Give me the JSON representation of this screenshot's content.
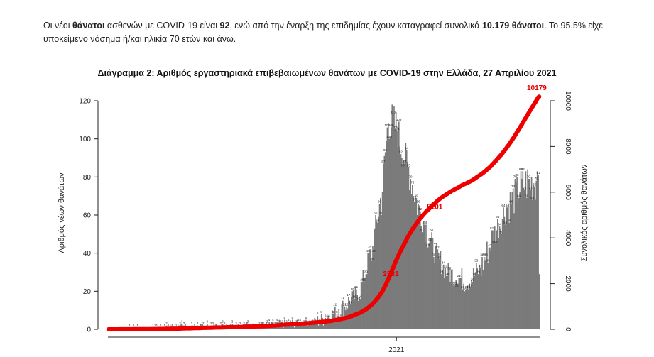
{
  "intro": {
    "p1": "Οι νέοι ",
    "b1": "θάνατοι",
    "p2": " ασθενών με COVID-19 είναι ",
    "b2": "92",
    "p3": ", ενώ από την έναρξη της επιδημίας έχουν καταγραφεί συνολικά ",
    "b3": "10.179 θάνατοι",
    "p4": ".  Το 95.5% είχε υποκείμενο νόσημα ή/και ηλικία 70 ετών και άνω."
  },
  "chart_data": {
    "type": "bar",
    "title": "Διάγραμμα 2: Αριθμός εργαστηριακά επιβεβαιωμένων θανάτων με COVID-19 στην Ελλάδα, 27 Απριλίου 2021",
    "ylabel": "Αριθμός νέων θανάτων",
    "y2label": "Συνολικός αριθμός θανάτων",
    "ylim": [
      0,
      120
    ],
    "y2lim": [
      0,
      10000
    ],
    "yticks": [
      "0",
      "20",
      "40",
      "60",
      "80",
      "100",
      "120"
    ],
    "y2ticks": [
      "0",
      "2000",
      "4000",
      "6000",
      "8000",
      "10000"
    ],
    "x_tick_labels": [
      "2021"
    ],
    "curve_annotations": [
      "2531",
      "5101",
      "10179"
    ],
    "segments": [
      {
        "days": 75,
        "start": 0,
        "end": 1,
        "amp": 1
      },
      {
        "days": 85,
        "start": 1,
        "end": 2,
        "amp": 2
      },
      {
        "days": 55,
        "start": 2,
        "end": 4,
        "amp": 2
      },
      {
        "days": 25,
        "start": 4,
        "end": 10,
        "amp": 4
      },
      {
        "days": 20,
        "start": 10,
        "end": 20,
        "amp": 5
      },
      {
        "days": 12,
        "start": 20,
        "end": 40,
        "amp": 6
      },
      {
        "days": 10,
        "start": 40,
        "end": 68,
        "amp": 8
      },
      {
        "days": 8,
        "start": 68,
        "end": 110,
        "amp": 10
      },
      {
        "days": 8,
        "start": 110,
        "end": 105,
        "amp": 12
      },
      {
        "days": 10,
        "start": 105,
        "end": 88,
        "amp": 10
      },
      {
        "days": 14,
        "start": 88,
        "end": 62,
        "amp": 10
      },
      {
        "days": 14,
        "start": 62,
        "end": 42,
        "amp": 8
      },
      {
        "days": 14,
        "start": 42,
        "end": 30,
        "amp": 6
      },
      {
        "days": 21,
        "start": 30,
        "end": 25,
        "amp": 6
      },
      {
        "days": 14,
        "start": 25,
        "end": 32,
        "amp": 6
      },
      {
        "days": 14,
        "start": 32,
        "end": 50,
        "amp": 8
      },
      {
        "days": 14,
        "start": 50,
        "end": 65,
        "amp": 8
      },
      {
        "days": 16,
        "start": 65,
        "end": 76,
        "amp": 10
      },
      {
        "days": 14,
        "start": 76,
        "end": 78,
        "amp": 12
      },
      {
        "days": 2,
        "start": 85,
        "end": 85,
        "amp": 4
      },
      {
        "days": 1,
        "start": 29,
        "end": 29,
        "amp": 0
      }
    ],
    "cumulative_total": 10179
  }
}
